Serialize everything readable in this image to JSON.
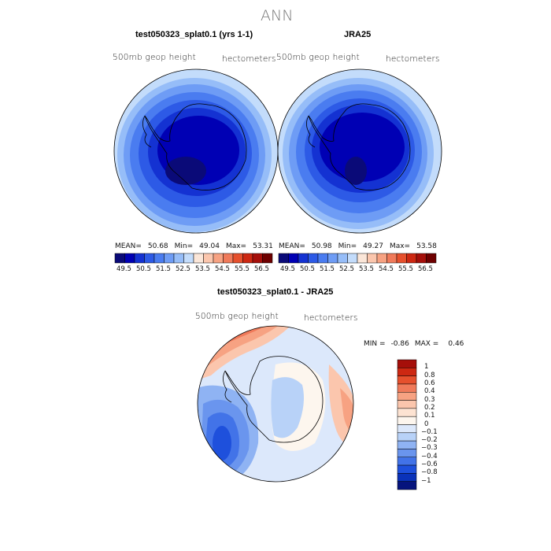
{
  "title": "ANN",
  "panels": [
    {
      "title": "test050323_splat0.1 (yrs 1-1)",
      "variable_label": "500mb geop height",
      "units_label": "hectometers",
      "stats": {
        "mean_label": "MEAN=",
        "mean": "50.68",
        "min_label": "Min=",
        "min": "49.04",
        "max_label": "Max=",
        "max": "53.31"
      }
    },
    {
      "title": "JRA25",
      "variable_label": "500mb geop height",
      "units_label": "hectometers",
      "stats": {
        "mean_label": "MEAN=",
        "mean": "50.98",
        "min_label": "Min=",
        "min": "49.27",
        "max_label": "Max=",
        "max": "53.58"
      }
    }
  ],
  "shared_colorbar": {
    "tick_labels": [
      "49.5",
      "50.5",
      "51.5",
      "52.5",
      "53.5",
      "54.5",
      "55.5",
      "56.5"
    ],
    "colors": [
      "#0a0a78",
      "#0000b4",
      "#1432d2",
      "#2d5ae6",
      "#4a7cf0",
      "#6e9cf5",
      "#96bdf8",
      "#c3dcfb",
      "#fbe6d8",
      "#fbc6ad",
      "#f7a282",
      "#f07a5a",
      "#e6502d",
      "#cd2812",
      "#a50f0a",
      "#6e0000"
    ]
  },
  "difference": {
    "title": "test050323_splat0.1 - JRA25",
    "variable_label": "500mb geop height",
    "units_label": "hectometers",
    "min_label": "MIN =",
    "min": "-0.86",
    "max_label": "MAX =",
    "max": "0.46",
    "colorbar_labels": [
      "1",
      "0.8",
      "0.6",
      "0.4",
      "0.3",
      "0.2",
      "0.1",
      "0",
      "−0.1",
      "−0.2",
      "−0.3",
      "−0.4",
      "−0.6",
      "−0.8",
      "−1"
    ],
    "colorbar_colors": [
      "#a50f0a",
      "#cd2812",
      "#e6502d",
      "#f07a5a",
      "#f7a282",
      "#fbc6ad",
      "#fde3d2",
      "#fdf6ee",
      "#dce8fb",
      "#b8d2f8",
      "#8fb3f3",
      "#6a95ee",
      "#4273e8",
      "#1e50dc",
      "#0a32b9",
      "#06147d"
    ]
  },
  "chart_data": [
    {
      "type": "heatmap",
      "title": "test050323_splat0.1 (yrs 1-1)",
      "variable": "500mb geop height",
      "units": "hectometers",
      "mean": 50.68,
      "min": 49.04,
      "max": 53.31,
      "levels": [
        49.5,
        50.0,
        50.5,
        51.0,
        51.5,
        52.0,
        52.5,
        53.0,
        53.5,
        54.0,
        54.5,
        55.0,
        55.5,
        56.0,
        56.5
      ]
    },
    {
      "type": "heatmap",
      "title": "JRA25",
      "variable": "500mb geop height",
      "units": "hectometers",
      "mean": 50.98,
      "min": 49.27,
      "max": 53.58,
      "levels": [
        49.5,
        50.0,
        50.5,
        51.0,
        51.5,
        52.0,
        52.5,
        53.0,
        53.5,
        54.0,
        54.5,
        55.0,
        55.5,
        56.0,
        56.5
      ]
    },
    {
      "type": "heatmap",
      "title": "test050323_splat0.1 - JRA25",
      "variable": "500mb geop height",
      "units": "hectometers",
      "min": -0.86,
      "max": 0.46,
      "levels": [
        -1,
        -0.8,
        -0.6,
        -0.4,
        -0.3,
        -0.2,
        -0.1,
        0,
        0.1,
        0.2,
        0.3,
        0.4,
        0.6,
        0.8,
        1
      ]
    }
  ]
}
